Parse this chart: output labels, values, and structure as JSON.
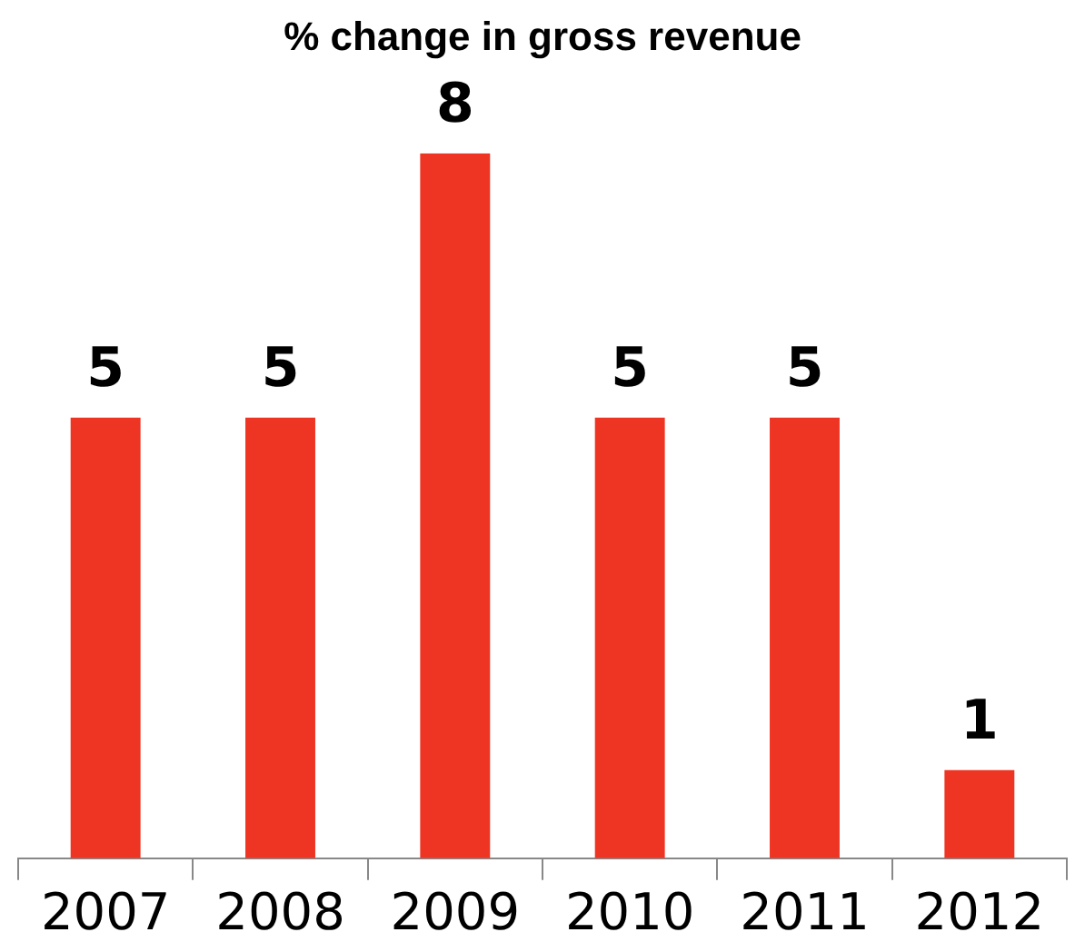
{
  "chart_data": {
    "type": "bar",
    "title": "% change in gross revenue",
    "categories": [
      "2007",
      "2008",
      "2009",
      "2010",
      "2011",
      "2012"
    ],
    "values": [
      5,
      5,
      8,
      5,
      5,
      1
    ],
    "color": "#ee3524",
    "data_labels": true,
    "grid": false,
    "legend": false
  }
}
